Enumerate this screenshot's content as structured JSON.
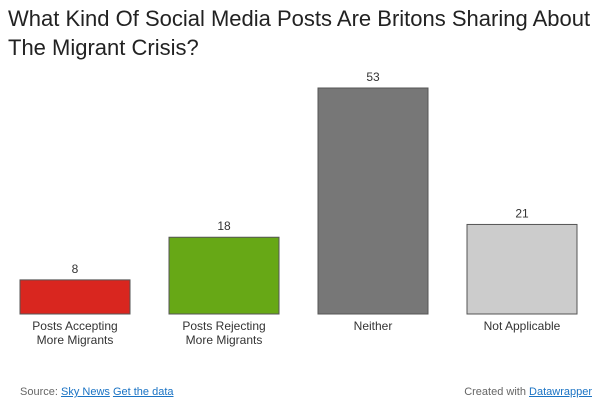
{
  "colors": {
    "accepting": "#d9261f",
    "rejecting": "#67a816",
    "neither": "#777777",
    "not_applicable": "#cccccc",
    "bar_stroke": "#555555",
    "link": "#1a73c4"
  },
  "footer": {
    "source_label": "Source:",
    "source_link": "Sky News",
    "get_data": "Get the data",
    "created_with": "Created with",
    "tool_link": "Datawrapper"
  },
  "chart_data": {
    "type": "bar",
    "title": "What Kind Of Social Media Posts Are Britons Sharing About The Migrant Crisis?",
    "categories": [
      [
        "Posts Accepting",
        "More Migrants"
      ],
      [
        "Posts Rejecting",
        "More Migrants"
      ],
      [
        "Neither"
      ],
      [
        "Not Applicable"
      ]
    ],
    "values": [
      8,
      18,
      53,
      21
    ],
    "bar_colors": [
      "#d9261f",
      "#67a816",
      "#777777",
      "#cccccc"
    ],
    "ylim": [
      0,
      53
    ],
    "grid": false,
    "legend": "none",
    "xlabel": "",
    "ylabel": ""
  }
}
